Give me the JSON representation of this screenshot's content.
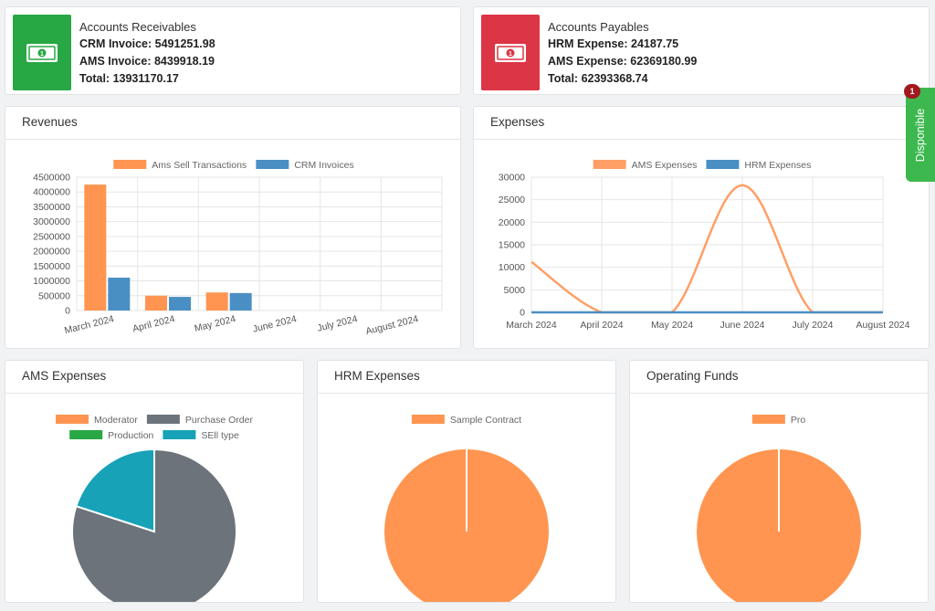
{
  "receivables": {
    "title": "Accounts Receivables",
    "line1": "CRM Invoice: 5491251.98",
    "line2": "AMS Invoice: 8439918.19",
    "line3": "Total: 13931170.17",
    "icon": "money-bill-icon",
    "color": "#28a745"
  },
  "payables": {
    "title": "Accounts Payables",
    "line1": "HRM Expense: 24187.75",
    "line2": "AMS Expense: 62369180.99",
    "line3": "Total: 62393368.74",
    "icon": "money-bill-icon",
    "color": "#dc3545"
  },
  "side_tab": {
    "label": "Disponible",
    "count": "1"
  },
  "panels": {
    "revenues": "Revenues",
    "expenses": "Expenses",
    "ams": "AMS Expenses",
    "hrm": "HRM Expenses",
    "funds": "Operating Funds"
  },
  "chart_data": [
    {
      "type": "bar",
      "title": "Revenues",
      "categories": [
        "March 2024",
        "April 2024",
        "May 2024",
        "June 2024",
        "July 2024",
        "August 2024"
      ],
      "series": [
        {
          "name": "Ams Sell Transactions",
          "color": "#ff9550",
          "values": [
            4250000,
            500000,
            610000,
            0,
            0,
            0
          ]
        },
        {
          "name": "CRM Invoices",
          "color": "#4a8fc4",
          "values": [
            1110000,
            460000,
            590000,
            0,
            0,
            0
          ]
        }
      ],
      "yticks": [
        0,
        500000,
        1000000,
        1500000,
        2000000,
        2500000,
        3000000,
        3500000,
        4000000,
        4500000
      ],
      "ylim": [
        0,
        4500000
      ],
      "legend": "top",
      "grid": true
    },
    {
      "type": "line",
      "title": "Expenses",
      "categories": [
        "March 2024",
        "April 2024",
        "May 2024",
        "June 2024",
        "July 2024",
        "August 2024"
      ],
      "series": [
        {
          "name": "AMS Expenses",
          "color": "#ff9f65",
          "values": [
            11200,
            0,
            0,
            28200,
            0,
            0
          ]
        },
        {
          "name": "HRM Expenses",
          "color": "#4a8fc4",
          "values": [
            0,
            0,
            0,
            0,
            0,
            0
          ]
        }
      ],
      "yticks": [
        0,
        5000,
        10000,
        15000,
        20000,
        25000,
        30000
      ],
      "ylim": [
        0,
        30000
      ],
      "legend": "top",
      "grid": true
    },
    {
      "type": "pie",
      "title": "AMS Expenses",
      "labels": [
        "Moderator",
        "Purchase Order",
        "Production",
        "SEll type"
      ],
      "colors": [
        "#ff9550",
        "#6c737a",
        "#28a745",
        "#17a2b8"
      ],
      "values": [
        0,
        80,
        0,
        20
      ],
      "legend": "top"
    },
    {
      "type": "pie",
      "title": "HRM Expenses",
      "labels": [
        "Sample Contract"
      ],
      "colors": [
        "#ff9550"
      ],
      "values": [
        100
      ],
      "legend": "top"
    },
    {
      "type": "pie",
      "title": "Operating Funds",
      "labels": [
        "Pro"
      ],
      "colors": [
        "#ff9550"
      ],
      "values": [
        100
      ],
      "legend": "top"
    }
  ]
}
